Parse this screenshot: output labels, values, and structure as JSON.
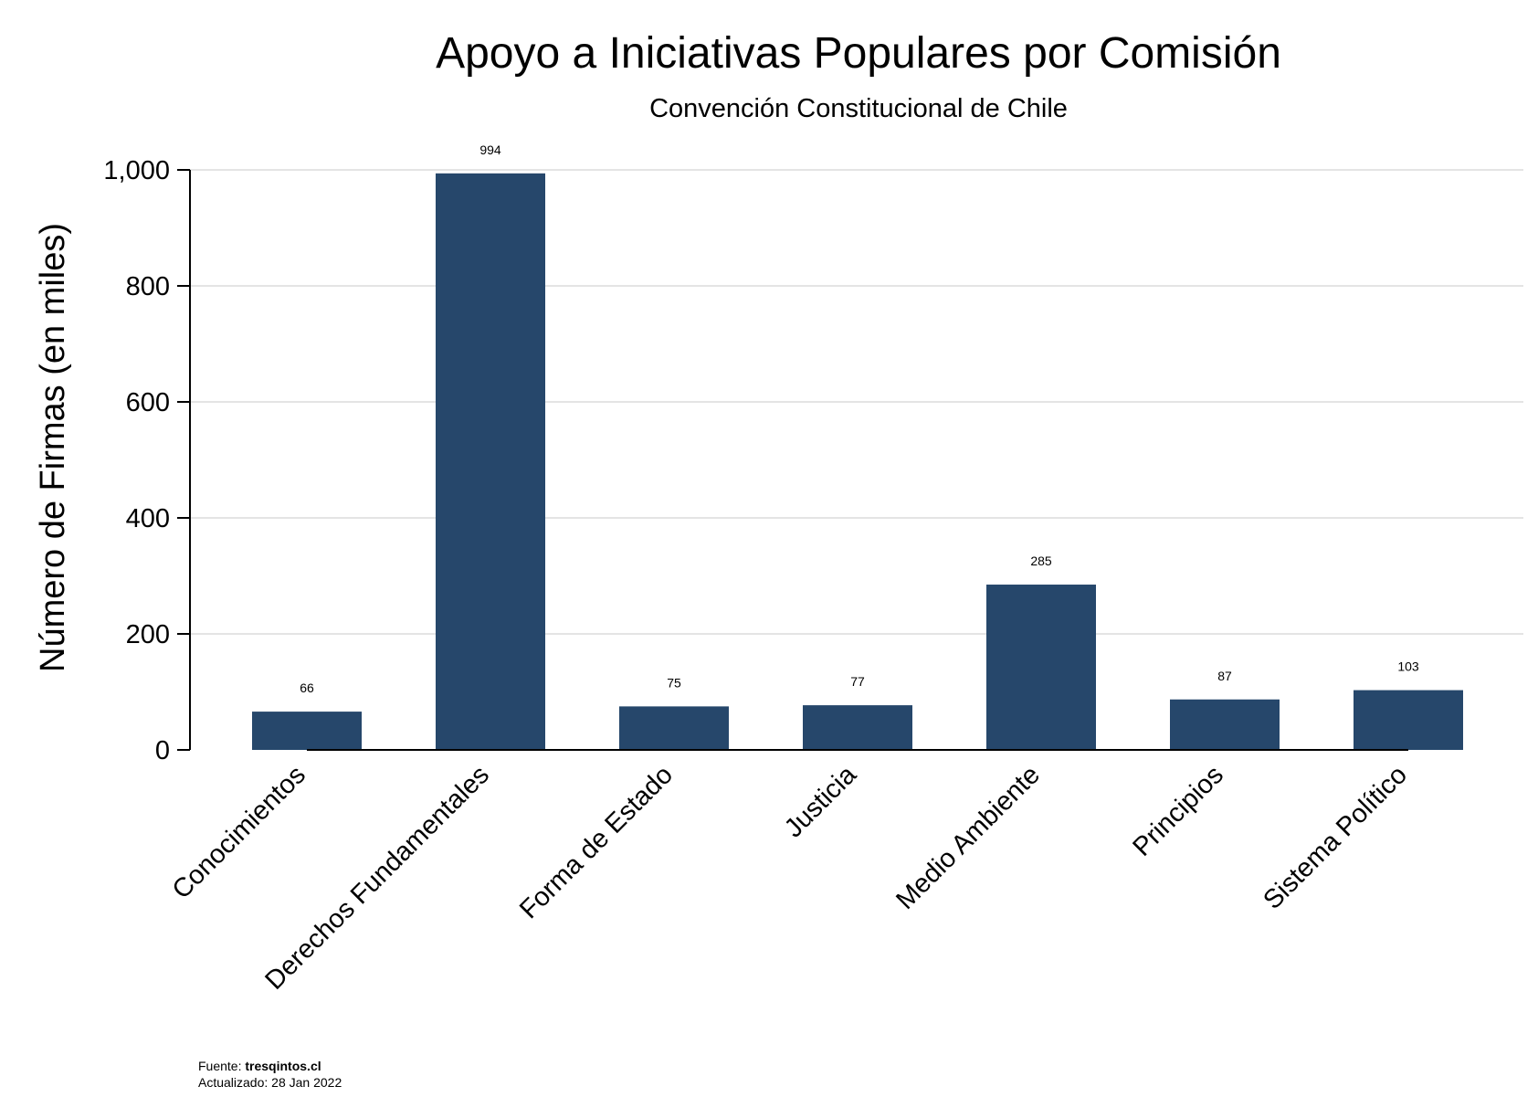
{
  "chart_data": {
    "type": "bar",
    "title": "Apoyo a Iniciativas Populares por Comisión",
    "subtitle": "Convención Constitucional de Chile",
    "xlabel": "",
    "ylabel": "Número de Firmas (en miles)",
    "ylim": [
      0,
      1000
    ],
    "yticks": [
      0,
      200,
      400,
      600,
      800,
      1000
    ],
    "ytick_labels": [
      "0",
      "200",
      "400",
      "600",
      "800",
      "1,000"
    ],
    "grid": true,
    "bar_color": "#26476b",
    "categories": [
      "Conocimientos",
      "Derechos Fundamentales",
      "Forma de Estado",
      "Justicia",
      "Medio Ambiente",
      "Principios",
      "Sistema Político"
    ],
    "values": [
      66,
      994,
      75,
      77,
      285,
      87,
      103
    ],
    "data_labels": [
      "66",
      "994",
      "75",
      "77",
      "285",
      "87",
      "103"
    ]
  },
  "footer": {
    "source_prefix": "Fuente: ",
    "source_name": "tresqintos.cl",
    "updated": "Actualizado: 28 Jan 2022"
  }
}
